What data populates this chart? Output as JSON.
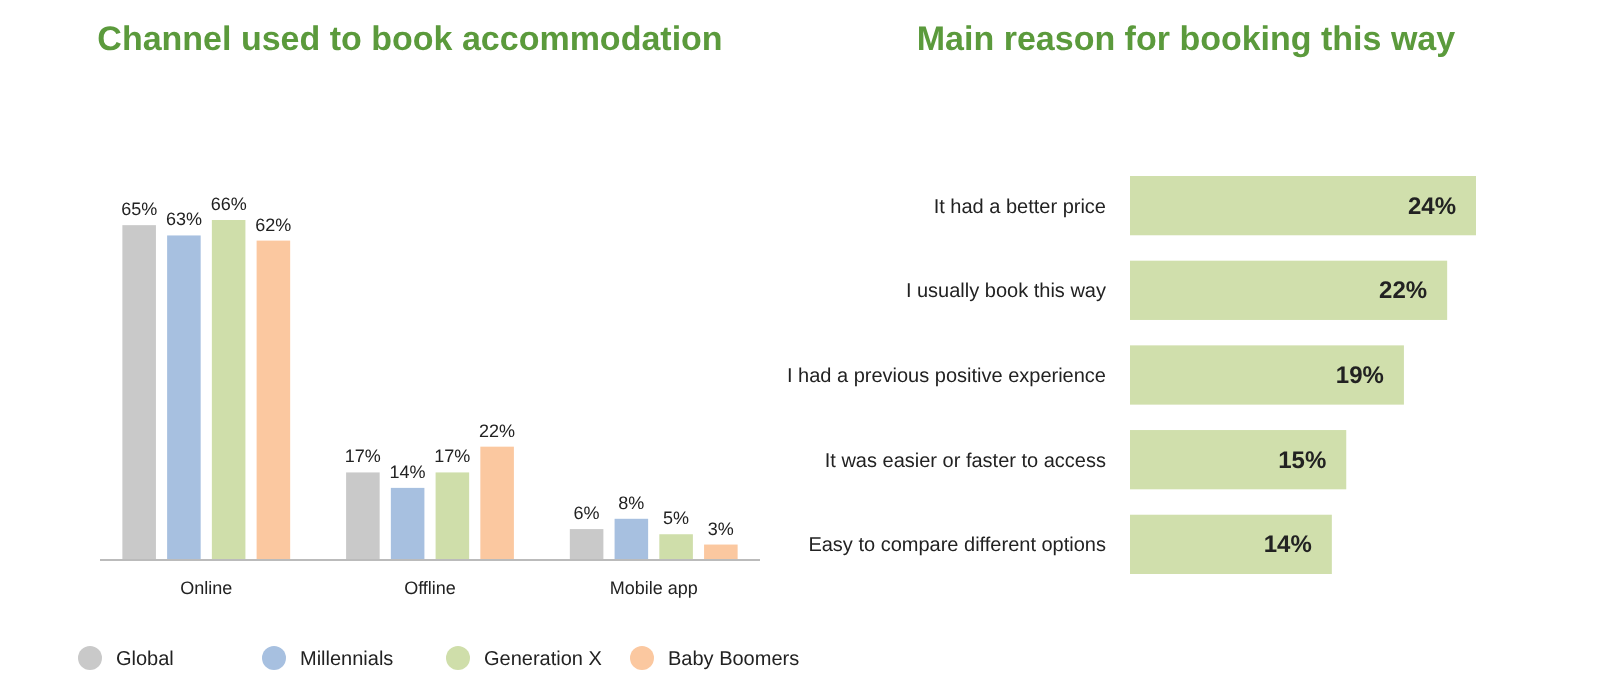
{
  "chart_data": [
    {
      "type": "bar",
      "title": "Channel used to book accommodation",
      "categories": [
        "Online",
        "Offline",
        "Mobile app"
      ],
      "series": [
        {
          "name": "Global",
          "color": "#c9c9c9",
          "values": [
            65,
            17,
            6
          ],
          "value_labels": [
            "65%",
            "17%",
            "6%"
          ]
        },
        {
          "name": "Millennials",
          "color": "#a7c0e0",
          "values": [
            63,
            14,
            8
          ],
          "value_labels": [
            "63%",
            "14%",
            "8%"
          ]
        },
        {
          "name": "Generation X",
          "color": "#cfdeaa",
          "values": [
            66,
            17,
            5
          ],
          "value_labels": [
            "66%",
            "17%",
            "5%"
          ]
        },
        {
          "name": "Baby Boomers",
          "color": "#fbc8a0",
          "values": [
            62,
            22,
            3
          ],
          "value_labels": [
            "62%",
            "22%",
            "3%"
          ]
        }
      ],
      "legend": "bottom"
    },
    {
      "type": "bar",
      "orientation": "horizontal",
      "title": "Main reason for booking this way",
      "categories": [
        "It had a better price",
        "I usually book this way",
        "I had a previous positive experience",
        "It was easier or faster to access",
        "Easy to compare different options"
      ],
      "values": [
        24,
        22,
        19,
        15,
        14
      ],
      "value_labels": [
        "24%",
        "22%",
        "19%",
        "15%",
        "14%"
      ],
      "color": "#d0dfac"
    }
  ]
}
